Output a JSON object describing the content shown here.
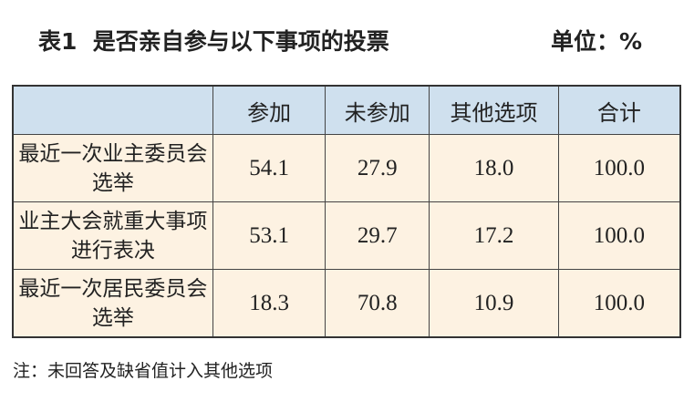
{
  "title": "表1  是否亲自参与以下事项的投票",
  "unit": "单位：%",
  "table": {
    "columns": [
      "参加",
      "未参加",
      "其他选项",
      "合计"
    ],
    "rows": [
      {
        "label": "最近一次业主委员会选举",
        "cells": [
          "54.1",
          "27.9",
          "18.0",
          "100.0"
        ]
      },
      {
        "label": "业主大会就重大事项进行表决",
        "cells": [
          "53.1",
          "29.7",
          "17.2",
          "100.0"
        ]
      },
      {
        "label": "最近一次居民委员会选举",
        "cells": [
          "18.3",
          "70.8",
          "10.9",
          "100.0"
        ]
      }
    ]
  },
  "note": "注：未回答及缺省值计入其他选项"
}
